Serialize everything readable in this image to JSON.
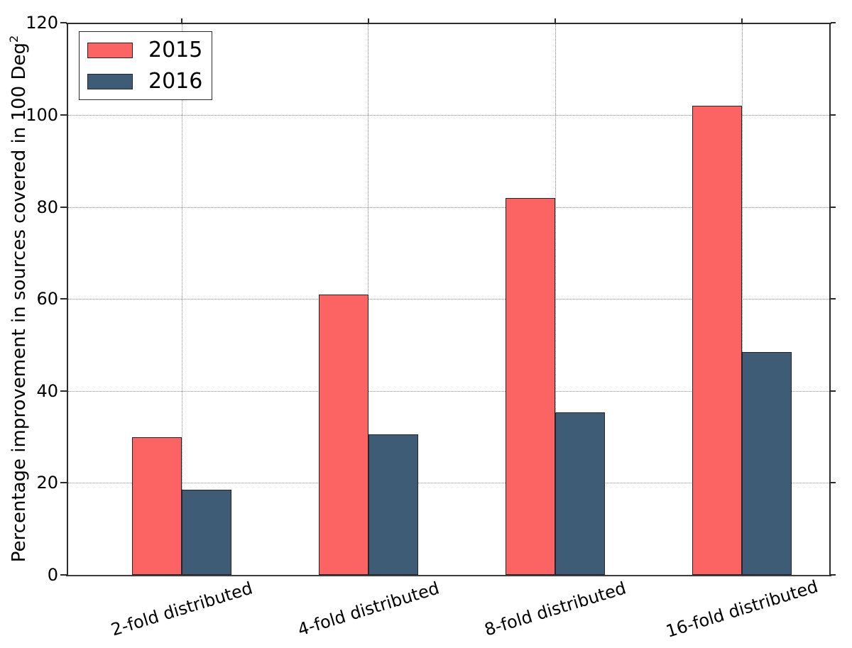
{
  "chart_data": {
    "type": "bar",
    "title": "",
    "categories": [
      "2-fold distributed",
      "4-fold distributed",
      "8-fold distributed",
      "16-fold distributed"
    ],
    "series": [
      {
        "name": "2015",
        "color": "#fc6464",
        "values": [
          30,
          61,
          82,
          102
        ]
      },
      {
        "name": "2016",
        "color": "#3f5c77",
        "values": [
          18.5,
          30.6,
          35.4,
          48.5
        ]
      }
    ],
    "xlabel": "",
    "ylabel": "Percentage improvement in sources covered in 100 Deg",
    "ylabel_superscript": "2",
    "yticks": [
      0,
      20,
      40,
      60,
      80,
      100,
      120
    ],
    "ylim": [
      0,
      120
    ],
    "grid": "dotted, horizontal at y ticks and vertical at category centers",
    "legend_position": "upper left",
    "bar_edge_color": "#24252b"
  }
}
